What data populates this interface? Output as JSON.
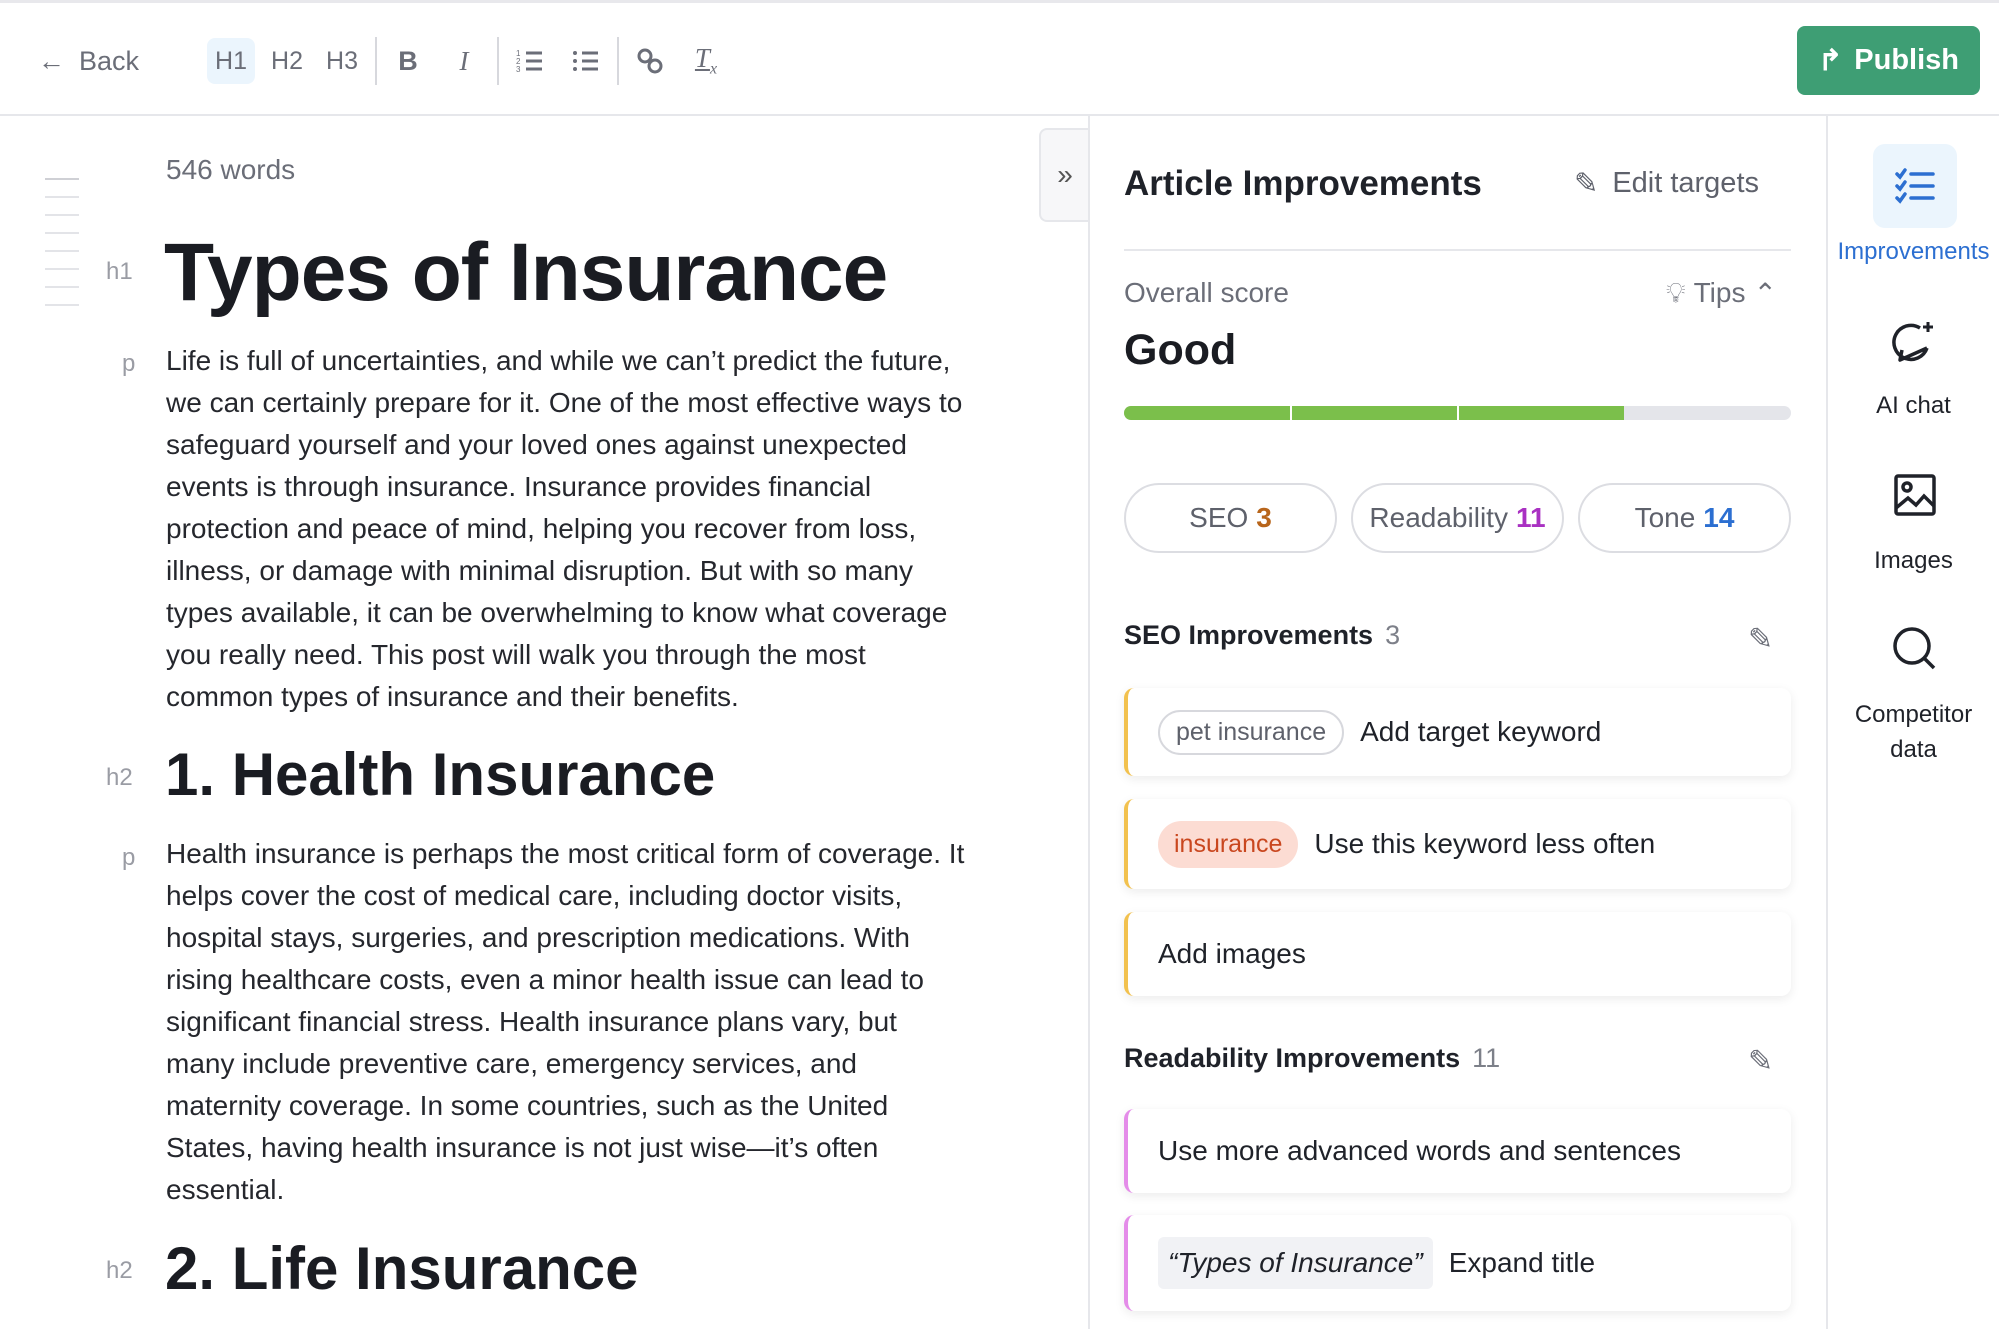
{
  "toolbar": {
    "back_label": "Back",
    "h1": "H1",
    "h2": "H2",
    "h3": "H3",
    "bold": "B",
    "italic": "I",
    "publish_label": "Publish"
  },
  "editor": {
    "word_count": "546 words",
    "blocks": [
      {
        "tag": "h1",
        "text": "Types of Insurance"
      },
      {
        "tag": "p",
        "lines": [
          "Life is full of uncertainties, and while we can’t predict the future,",
          "we can certainly prepare for it. One of the most effective ways to",
          "safeguard yourself and your loved ones against unexpected",
          "events is through insurance. Insurance provides financial",
          "protection and peace of mind, helping you recover from loss,",
          "illness, or damage with minimal disruption. But with so many",
          "types available, it can be overwhelming to know what coverage",
          "you really need. This post will walk you through the most",
          "common types of insurance and their benefits."
        ]
      },
      {
        "tag": "h2",
        "text": "1. Health Insurance"
      },
      {
        "tag": "p",
        "lines": [
          "Health insurance is perhaps the most critical form of coverage. It",
          "helps cover the cost of medical care, including doctor visits,",
          "hospital stays, surgeries, and prescription medications. With",
          "rising healthcare costs, even a minor health issue can lead to",
          "significant financial stress. Health insurance plans vary, but",
          "many include preventive care, emergency services, and",
          "maternity coverage. In some countries, such as the United",
          "States, having health insurance is not just wise—it’s often",
          "essential."
        ]
      },
      {
        "tag": "h2",
        "text": "2. Life Insurance"
      }
    ]
  },
  "panel": {
    "title": "Article Improvements",
    "edit_targets": "Edit targets",
    "overall_label": "Overall score",
    "tips_label": "Tips",
    "score_text": "Good",
    "score_fraction": 0.75,
    "pills": [
      {
        "label": "SEO",
        "count": "3",
        "color": "#b8651b"
      },
      {
        "label": "Readability",
        "count": "11",
        "color": "#a931c2"
      },
      {
        "label": "Tone",
        "count": "14",
        "color": "#2c6fd1"
      }
    ],
    "seo": {
      "title": "SEO Improvements",
      "count": "3",
      "items": [
        {
          "chip": "pet insurance",
          "text": "Add target keyword"
        },
        {
          "chip": "insurance",
          "text": "Use this keyword less often"
        },
        {
          "text": "Add images"
        }
      ]
    },
    "readability": {
      "title": "Readability Improvements",
      "count": "11",
      "items": [
        {
          "text": "Use more advanced words and sentences"
        },
        {
          "chip": "“Types of Insurance”",
          "text": "Expand title"
        }
      ]
    }
  },
  "rail": {
    "items": [
      {
        "label": "Improvements",
        "active": true
      },
      {
        "label": "AI chat"
      },
      {
        "label": "Images"
      },
      {
        "label": "Competitor data"
      }
    ]
  },
  "colors": {
    "accent": "#2c6fd1",
    "publish": "#3e9e74",
    "progress": "#7bbf4b"
  }
}
